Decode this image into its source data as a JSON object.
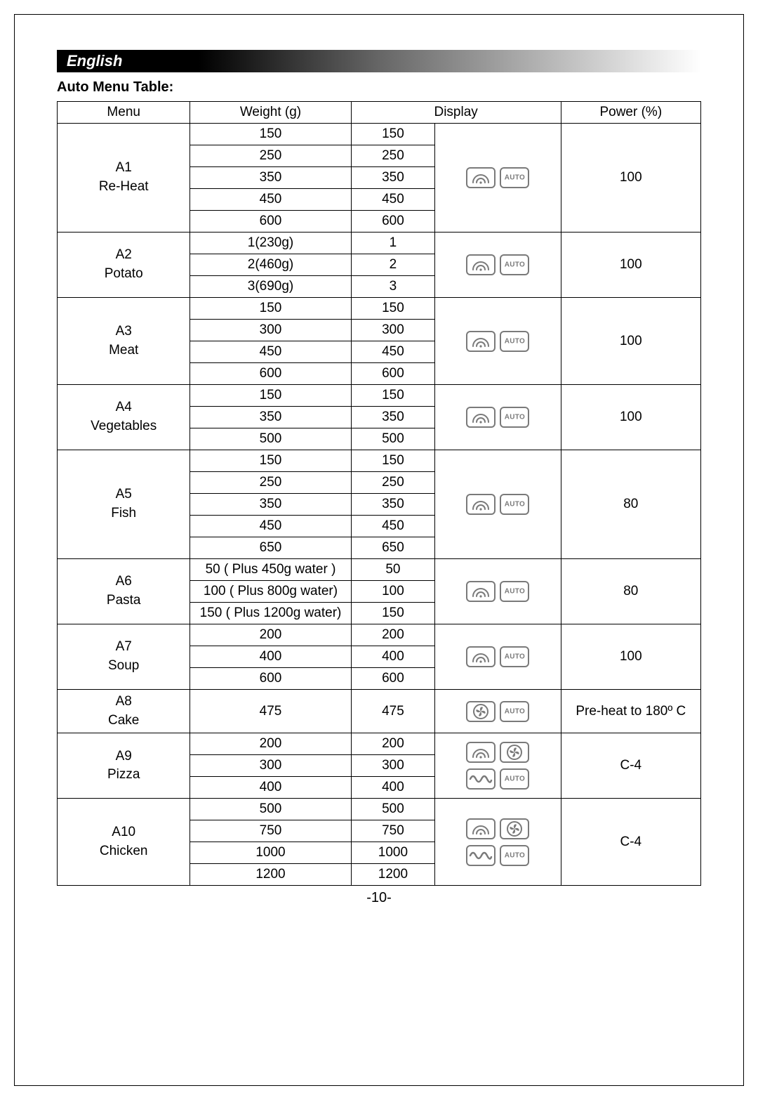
{
  "language_label": "English",
  "section_title": "Auto Menu Table:",
  "headers": {
    "menu": "Menu",
    "weight": "Weight (g)",
    "display": "Display",
    "power": "Power (%)"
  },
  "icons": {
    "microwave": "microwave",
    "auto": "auto",
    "fan": "fan",
    "grill": "grill"
  },
  "menus": [
    {
      "code": "A1",
      "name": "Re-Heat",
      "rows": [
        {
          "weight": "150",
          "display": "150"
        },
        {
          "weight": "250",
          "display": "250"
        },
        {
          "weight": "350",
          "display": "350"
        },
        {
          "weight": "450",
          "display": "450"
        },
        {
          "weight": "600",
          "display": "600"
        }
      ],
      "icon_set": "mw_auto",
      "power": "100"
    },
    {
      "code": "A2",
      "name": "Potato",
      "rows": [
        {
          "weight": "1(230g)",
          "display": "1"
        },
        {
          "weight": "2(460g)",
          "display": "2"
        },
        {
          "weight": "3(690g)",
          "display": "3"
        }
      ],
      "icon_set": "mw_auto",
      "power": "100"
    },
    {
      "code": "A3",
      "name": "Meat",
      "rows": [
        {
          "weight": "150",
          "display": "150"
        },
        {
          "weight": "300",
          "display": "300"
        },
        {
          "weight": "450",
          "display": "450"
        },
        {
          "weight": "600",
          "display": "600"
        }
      ],
      "icon_set": "mw_auto",
      "power": "100"
    },
    {
      "code": "A4",
      "name": "Vegetables",
      "rows": [
        {
          "weight": "150",
          "display": "150"
        },
        {
          "weight": "350",
          "display": "350"
        },
        {
          "weight": "500",
          "display": "500"
        }
      ],
      "icon_set": "mw_auto",
      "power": "100"
    },
    {
      "code": "A5",
      "name": "Fish",
      "rows": [
        {
          "weight": "150",
          "display": "150"
        },
        {
          "weight": "250",
          "display": "250"
        },
        {
          "weight": "350",
          "display": "350"
        },
        {
          "weight": "450",
          "display": "450"
        },
        {
          "weight": "650",
          "display": "650"
        }
      ],
      "icon_set": "mw_auto",
      "power": "80"
    },
    {
      "code": "A6",
      "name": "Pasta",
      "rows": [
        {
          "weight": "50 ( Plus 450g water )",
          "display": "50"
        },
        {
          "weight": "100 ( Plus 800g water)",
          "display": "100"
        },
        {
          "weight": "150 ( Plus 1200g water)",
          "display": "150"
        }
      ],
      "icon_set": "mw_auto",
      "power": "80"
    },
    {
      "code": "A7",
      "name": "Soup",
      "rows": [
        {
          "weight": "200",
          "display": "200"
        },
        {
          "weight": "400",
          "display": "400"
        },
        {
          "weight": "600",
          "display": "600"
        }
      ],
      "icon_set": "mw_auto",
      "power": "100"
    },
    {
      "code": "A8",
      "name": "Cake",
      "rows": [
        {
          "weight": "475",
          "display": "475"
        }
      ],
      "icon_set": "fan_auto",
      "power": "Pre-heat to 180º C"
    },
    {
      "code": "A9",
      "name": "Pizza",
      "rows": [
        {
          "weight": "200",
          "display": "200"
        },
        {
          "weight": "300",
          "display": "300"
        },
        {
          "weight": "400",
          "display": "400"
        }
      ],
      "icon_set": "combo",
      "power": "C-4"
    },
    {
      "code": "A10",
      "name": "Chicken",
      "rows": [
        {
          "weight": "500",
          "display": "500"
        },
        {
          "weight": "750",
          "display": "750"
        },
        {
          "weight": "1000",
          "display": "1000"
        },
        {
          "weight": "1200",
          "display": "1200"
        }
      ],
      "icon_set": "combo",
      "power": "C-4"
    }
  ],
  "page_number": "-10-",
  "style": {
    "border_color": "#000000",
    "icon_color": "#7a7a7a",
    "fontsize_body": 19,
    "fontsize_title": 20,
    "fontsize_lang": 22
  }
}
